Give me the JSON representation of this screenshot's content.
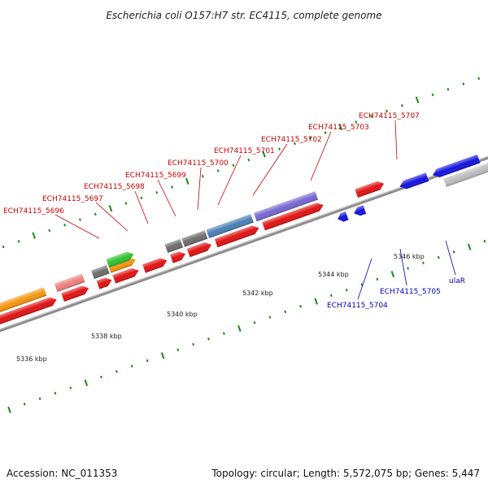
{
  "title": "Escherichia coli O157:H7 str. EC4115, complete genome",
  "footer": {
    "accession": "Accession: NC_011353",
    "summary": "Topology: circular; Length: 5,572,075 bp; Genes: 5,447"
  },
  "colors": {
    "label_red": "#cc0000",
    "label_blue": "#0000bb",
    "backbone": "#8c8c8c",
    "tick": "#1a8a1a"
  },
  "ticks": {
    "labels": [
      "5336 kbp",
      "5338 kbp",
      "5340 kbp",
      "5342 kbp",
      "5344 kbp",
      "5346 kbp"
    ]
  },
  "gene_labels": {
    "forward": [
      "ECH74115_5696",
      "ECH74115_5697",
      "ECH74115_5698",
      "ECH74115_5699",
      "ECH74115_5700",
      "ECH74115_5701",
      "ECH74115_5702",
      "ECH74115_5703",
      "ECH74115_5707"
    ],
    "reverse": [
      "ECH74115_5704",
      "ECH74115_5705",
      "ulaR"
    ]
  }
}
